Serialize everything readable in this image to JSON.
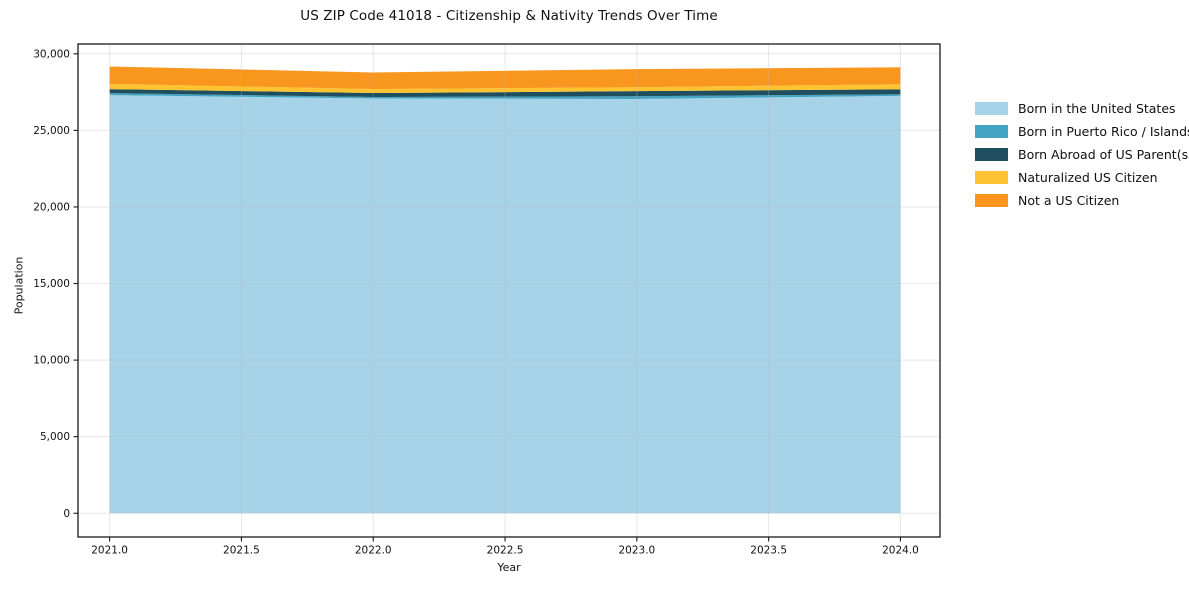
{
  "page": {
    "title": "US ZIP Code 41018 - Citizenship & Nativity Trends Over Time"
  },
  "chart_data": {
    "type": "area",
    "stacked": true,
    "title": "US ZIP Code 41018 - Citizenship & Nativity Trends Over Time",
    "xlabel": "Year",
    "ylabel": "Population",
    "x": [
      2021,
      2022,
      2023,
      2024
    ],
    "series": [
      {
        "name": "Born in the United States",
        "color": "#A6D3E8",
        "values": [
          27300,
          27080,
          27050,
          27250
        ]
      },
      {
        "name": "Born in Puerto Rico / Islands",
        "color": "#44A5C2",
        "values": [
          130,
          100,
          180,
          110
        ]
      },
      {
        "name": "Born Abroad of US Parent(s)",
        "color": "#1F4E5F",
        "values": [
          260,
          260,
          330,
          320
        ]
      },
      {
        "name": "Naturalized US Citizen",
        "color": "#FDC330",
        "values": [
          350,
          260,
          260,
          330
        ]
      },
      {
        "name": "Not a US Citizen",
        "color": "#F8961E",
        "values": [
          1130,
          1080,
          1180,
          1110
        ]
      }
    ],
    "totals": [
      29170,
      28780,
      29000,
      29120
    ],
    "xticks": {
      "values": [
        2021.0,
        2021.5,
        2022.0,
        2022.5,
        2023.0,
        2023.5,
        2024.0
      ],
      "labels": [
        "2021.0",
        "2021.5",
        "2022.0",
        "2022.5",
        "2023.0",
        "2023.5",
        "2024.0"
      ]
    },
    "yticks": {
      "values": [
        0,
        5000,
        10000,
        15000,
        20000,
        25000,
        30000
      ],
      "labels": [
        "0",
        "5,000",
        "10,000",
        "15,000",
        "20,000",
        "25,000",
        "30,000"
      ]
    },
    "xlim": [
      2020.88,
      2024.15
    ],
    "ylim": [
      -1550,
      30640
    ],
    "grid": true,
    "grid_color": "#bbbbbb",
    "legend_position": "right",
    "frame_color": "#1a1a1a",
    "background": "#ffffff"
  }
}
